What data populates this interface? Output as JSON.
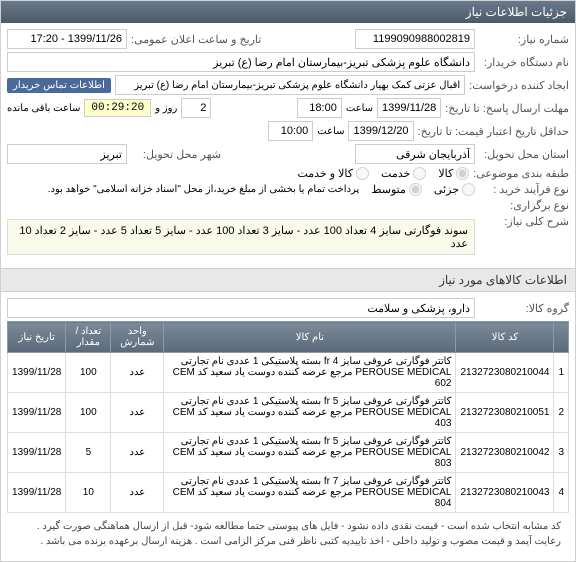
{
  "header": {
    "title": "جزئیات اطلاعات نیاز"
  },
  "fields": {
    "need_number_label": "شماره نیاز:",
    "need_number": "1199090988002819",
    "announce_label": "تاریخ و ساعت اعلان عمومی:",
    "announce_value": "1399/11/26 - 17:20",
    "buyer_label": "نام دستگاه خریدار:",
    "buyer_value": "دانشگاه علوم پزشکی تبریز-بیمارستان امام رضا (ع) تبریز",
    "creator_label": "ایجاد کننده درخواست:",
    "creator_value": "اقبال عزتی کمک بهیار دانشگاه علوم پزشکی تبریز-بیمارستان امام رضا (ع) تبریز",
    "contact_btn": "اطلاعات تماس خریدار",
    "deadline_label": "مهلت ارسال پاسخ: تا تاریخ:",
    "deadline_date": "1399/11/28",
    "deadline_hour_label": "ساعت",
    "deadline_hour": "18:00",
    "remain_day": "2",
    "remain_day_label": "روز و",
    "remain_time": "00:29:20",
    "remain_label": "ساعت باقی مانده",
    "price_valid_label": "حداقل تاریخ اعتبار قیمت:  تا تاریخ:",
    "price_valid_date": "1399/12/20",
    "price_valid_hour": "10:00",
    "province_label": "استان محل تحویل:",
    "province": "آذربایجان شرقی",
    "city_label": "شهر محل تحویل:",
    "city": "تبریز",
    "group_label": "طبقه بندی موضوعی:",
    "group_goods": "کالا",
    "group_service": "خدمت",
    "group_both": "کالا و خدمت",
    "process_label": "نوع فرآیند خرید :",
    "process_low": "جزئی",
    "process_med": "متوسط",
    "process_note": "پرداخت تمام یا بخشی از مبلغ خرید،از محل \"اسناد خزانه اسلامی\" خواهد بود.",
    "share_label": "نوع برگزاری:",
    "desc_label": "شرح کلی نیاز:",
    "desc_text": "سوند فوگارتی سایز 4 تعداد 100 عدد - سایز 3 تعداد 100 عدد - سایز 5 تعداد 5 عدد - سایز 2 تعداد 10 عدد"
  },
  "items_header": "اطلاعات کالاهای مورد نیاز",
  "group_row": {
    "label": "گروه کالا:",
    "value": "دارو، پزشکی و سلامت"
  },
  "table": {
    "columns": [
      "",
      "کد کالا",
      "نام کالا",
      "واحد شمارش",
      "تعداد / مقدار",
      "تاریخ نیاز"
    ],
    "rows": [
      [
        "1",
        "2132723080210044",
        "کاتتر فوگارتی عروقی سایز fr 4 بسته پلاستیکی 1 عددی نام تجارتی PEROUSE MEDICAL مرجع عرضه کننده دوست یاد سعید کد CEM 602",
        "عدد",
        "100",
        "1399/11/28"
      ],
      [
        "2",
        "2132723080210051",
        "کاتتر فوگارتی عروقی سایز fr 5 بسته پلاستیکی 1 عددی نام تجارتی PEROUSE MEDICAL مرجع عرضه کننده دوست یاد سعید کد CEM 403",
        "عدد",
        "100",
        "1399/11/28"
      ],
      [
        "3",
        "2132723080210042",
        "کاتتر فوگارتی عروقی سایز fr 5 بسته پلاستیکی 1 عددی نام تجارتی PEROUSE MEDICAL مرجع عرضه کننده دوست یاد سعید کد CEM 803",
        "عدد",
        "5",
        "1399/11/28"
      ],
      [
        "4",
        "2132723080210043",
        "کاتتر فوگارتی عروقی سایز fr 7 بسته پلاستیکی 1 عددی نام تجارتی PEROUSE MEDICAL مرجع عرضه کننده دوست یاد سعید کد CEM 804",
        "عدد",
        "10",
        "1399/11/28"
      ]
    ]
  },
  "footer_note": "کد مشابه انتخاب شده است - قیمت نقدی داده نشود - فایل های پیوستی حتما مطالعه شود- قبل از ارسال هماهنگی صورت گیرد . رعایت آیمد و قیمت مصوب و تولید داخلی -  اخذ تاییدیه کتبی ناظر فنی مرکز الزامی است . هزینه ارسال برعهده برنده می باشد ."
}
